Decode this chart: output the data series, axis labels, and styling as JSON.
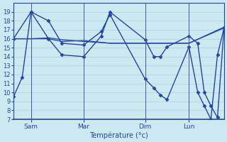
{
  "background_color": "#cce8f0",
  "grid_color": "#b0c8d0",
  "line_color": "#2244aa",
  "xlabel": "Température (°c)",
  "ylim": [
    7,
    20
  ],
  "xlim": [
    0,
    96
  ],
  "yticks": [
    7,
    8,
    9,
    10,
    11,
    12,
    13,
    14,
    15,
    16,
    17,
    18,
    19
  ],
  "day_ticks": [
    8,
    32,
    60,
    80
  ],
  "day_labels": [
    "Sam",
    "Mar",
    "Dim",
    "Lun"
  ],
  "vline_positions": [
    8,
    32,
    60,
    80
  ],
  "series1": {
    "x": [
      0,
      4,
      8,
      16,
      22,
      32,
      40,
      44,
      60,
      64,
      67,
      70,
      80,
      84,
      87,
      90,
      93,
      96
    ],
    "y": [
      9.5,
      11.7,
      19.0,
      18.0,
      15.5,
      15.3,
      16.8,
      18.7,
      11.5,
      10.5,
      9.7,
      9.2,
      15.1,
      10.0,
      8.5,
      7.0,
      14.2,
      17.2
    ]
  },
  "series2": {
    "x": [
      0,
      8,
      16,
      22,
      32,
      40,
      44,
      60,
      64,
      67,
      70,
      80,
      84,
      87,
      90,
      93,
      96
    ],
    "y": [
      16.0,
      19.0,
      16.0,
      14.2,
      14.0,
      16.3,
      19.0,
      15.9,
      14.0,
      14.0,
      15.1,
      16.3,
      15.5,
      10.0,
      8.5,
      7.2,
      17.2
    ]
  },
  "series3": {
    "x": [
      0,
      8,
      16,
      22,
      32,
      44,
      60,
      80,
      96
    ],
    "y": [
      16.0,
      16.0,
      16.0,
      15.7,
      15.8,
      15.5,
      15.5,
      15.5,
      17.2
    ]
  },
  "series4": {
    "x": [
      0,
      8,
      16,
      22,
      32,
      44,
      60,
      80,
      96
    ],
    "y": [
      16.0,
      16.0,
      16.1,
      15.9,
      15.7,
      15.5,
      15.5,
      15.5,
      17.3
    ]
  }
}
